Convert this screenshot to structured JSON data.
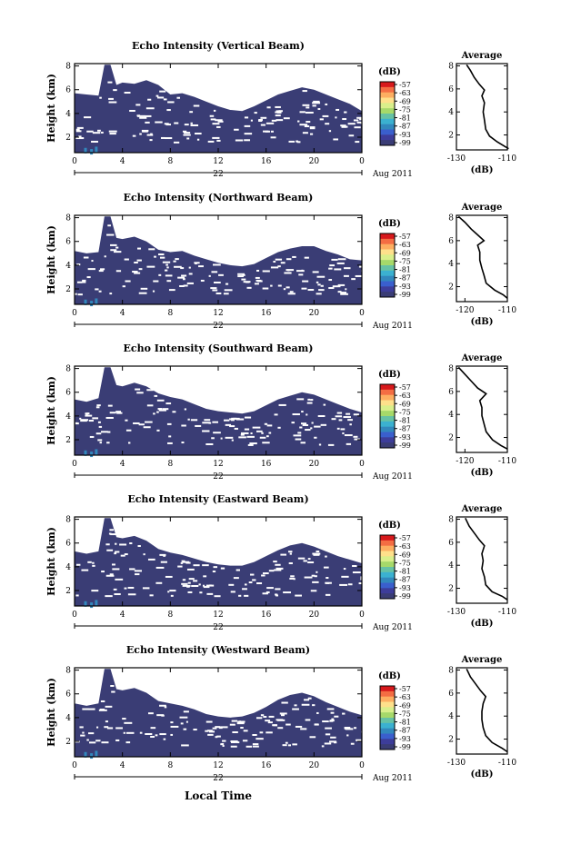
{
  "figure": {
    "bottom_xlabel": "Local Time"
  },
  "colorbar": {
    "unit": "(dB)",
    "ticks": [
      "-57",
      "-63",
      "-69",
      "-75",
      "-81",
      "-87",
      "-93",
      "-99"
    ],
    "colors": [
      "#d7191c",
      "#f46d43",
      "#fdae61",
      "#fee08b",
      "#d9ef8b",
      "#a6d96a",
      "#66c2a5",
      "#3bb1d0",
      "#3288bd",
      "#3a5fcd",
      "#3d3d9a",
      "#3a3d75"
    ]
  },
  "colors": {
    "background_echo": "#3a3d75",
    "strong_echo": "#3288bd",
    "axis": "#000000"
  },
  "chart_data": [
    {
      "type": "heatmap",
      "title": "Echo Intensity (Vertical Beam)",
      "ylabel": "Height (km)",
      "x_ticks": [
        "0",
        "4",
        "8",
        "12",
        "16",
        "20",
        "0"
      ],
      "xlim": [
        0,
        24
      ],
      "y_ticks": [
        "2",
        "4",
        "6",
        "8"
      ],
      "ylim": [
        0.7,
        8.2
      ],
      "date_day": "22",
      "date_month_year": "Aug 2011",
      "echo_top_km": [
        [
          0,
          5.7
        ],
        [
          1,
          5.6
        ],
        [
          2,
          5.5
        ],
        [
          2.5,
          8.1
        ],
        [
          3,
          8.1
        ],
        [
          3.5,
          6.4
        ],
        [
          4,
          6.6
        ],
        [
          5,
          6.5
        ],
        [
          6,
          6.8
        ],
        [
          7,
          6.4
        ],
        [
          8,
          5.6
        ],
        [
          9,
          5.7
        ],
        [
          10,
          5.4
        ],
        [
          11,
          5.0
        ],
        [
          12,
          4.6
        ],
        [
          13,
          4.3
        ],
        [
          14,
          4.2
        ],
        [
          15,
          4.6
        ],
        [
          16,
          5.1
        ],
        [
          17,
          5.6
        ],
        [
          18,
          5.9
        ],
        [
          19,
          6.2
        ],
        [
          20,
          6.0
        ],
        [
          21,
          5.6
        ],
        [
          22,
          5.2
        ],
        [
          23,
          4.8
        ],
        [
          24,
          4.2
        ]
      ],
      "profile": {
        "title": "Average",
        "xlabel": "(dB)",
        "x_ticks": [
          "-130",
          "-110"
        ],
        "xlim": [
          -130,
          -110
        ],
        "y_ticks": [
          "2",
          "4",
          "6",
          "8"
        ],
        "ylim": [
          0.7,
          8.2
        ],
        "points": [
          [
            -109.5,
            0.8
          ],
          [
            -111,
            1.0
          ],
          [
            -114,
            1.4
          ],
          [
            -117,
            1.9
          ],
          [
            -118.5,
            2.5
          ],
          [
            -119,
            3.3
          ],
          [
            -119.5,
            4.0
          ],
          [
            -119,
            4.8
          ],
          [
            -120,
            5.4
          ],
          [
            -119,
            5.9
          ],
          [
            -121,
            6.4
          ],
          [
            -123,
            7.0
          ],
          [
            -124.5,
            7.6
          ],
          [
            -126,
            8.1
          ]
        ]
      }
    },
    {
      "type": "heatmap",
      "title": "Echo Intensity (Northward Beam)",
      "ylabel": "Height (km)",
      "x_ticks": [
        "0",
        "4",
        "8",
        "12",
        "16",
        "20",
        "0"
      ],
      "xlim": [
        0,
        24
      ],
      "y_ticks": [
        "2",
        "4",
        "6",
        "8"
      ],
      "ylim": [
        0.7,
        8.2
      ],
      "date_day": "22",
      "date_month_year": "Aug 2011",
      "echo_top_km": [
        [
          0,
          5.2
        ],
        [
          1,
          5.0
        ],
        [
          2,
          5.1
        ],
        [
          2.5,
          8.1
        ],
        [
          3,
          8.1
        ],
        [
          3.5,
          6.3
        ],
        [
          4,
          6.2
        ],
        [
          5,
          6.4
        ],
        [
          6,
          6.0
        ],
        [
          7,
          5.3
        ],
        [
          8,
          5.1
        ],
        [
          9,
          5.2
        ],
        [
          10,
          4.8
        ],
        [
          11,
          4.5
        ],
        [
          12,
          4.2
        ],
        [
          13,
          4.0
        ],
        [
          14,
          3.9
        ],
        [
          15,
          4.1
        ],
        [
          16,
          4.6
        ],
        [
          17,
          5.1
        ],
        [
          18,
          5.4
        ],
        [
          19,
          5.6
        ],
        [
          20,
          5.6
        ],
        [
          21,
          5.2
        ],
        [
          22,
          4.9
        ],
        [
          23,
          4.5
        ],
        [
          24,
          4.4
        ]
      ],
      "profile": {
        "title": "Average",
        "xlabel": "(dB)",
        "x_ticks": [
          "-120",
          "-110"
        ],
        "xlim": [
          -122,
          -110
        ],
        "y_ticks": [
          "2",
          "4",
          "6",
          "8"
        ],
        "ylim": [
          0.7,
          8.2
        ],
        "points": [
          [
            -110,
            1.0
          ],
          [
            -111,
            1.3
          ],
          [
            -113,
            1.7
          ],
          [
            -115,
            2.3
          ],
          [
            -115.5,
            3.0
          ],
          [
            -116,
            3.6
          ],
          [
            -116.5,
            4.3
          ],
          [
            -116.5,
            5.0
          ],
          [
            -117,
            5.6
          ],
          [
            -115.5,
            6.0
          ],
          [
            -117,
            6.5
          ],
          [
            -118.5,
            7.0
          ],
          [
            -120,
            7.6
          ],
          [
            -121.5,
            8.1
          ]
        ]
      }
    },
    {
      "type": "heatmap",
      "title": "Echo Intensity (Southward Beam)",
      "ylabel": "Height (km)",
      "x_ticks": [
        "0",
        "4",
        "8",
        "12",
        "16",
        "20",
        "0"
      ],
      "xlim": [
        0,
        24
      ],
      "y_ticks": [
        "2",
        "4",
        "6",
        "8"
      ],
      "ylim": [
        0.7,
        8.2
      ],
      "date_day": "22",
      "date_month_year": "Aug 2011",
      "echo_top_km": [
        [
          0,
          5.4
        ],
        [
          1,
          5.2
        ],
        [
          2,
          5.5
        ],
        [
          2.5,
          8.1
        ],
        [
          3,
          8.1
        ],
        [
          3.5,
          6.6
        ],
        [
          4,
          6.5
        ],
        [
          5,
          6.8
        ],
        [
          6,
          6.5
        ],
        [
          7,
          5.9
        ],
        [
          8,
          5.6
        ],
        [
          9,
          5.4
        ],
        [
          10,
          5.0
        ],
        [
          11,
          4.6
        ],
        [
          12,
          4.4
        ],
        [
          13,
          4.3
        ],
        [
          14,
          4.2
        ],
        [
          15,
          4.4
        ],
        [
          16,
          4.9
        ],
        [
          17,
          5.4
        ],
        [
          18,
          5.7
        ],
        [
          19,
          6.0
        ],
        [
          20,
          5.8
        ],
        [
          21,
          5.4
        ],
        [
          22,
          5.0
        ],
        [
          23,
          4.6
        ],
        [
          24,
          4.3
        ]
      ],
      "profile": {
        "title": "Average",
        "xlabel": "(dB)",
        "x_ticks": [
          "-120",
          "-110"
        ],
        "xlim": [
          -122,
          -110
        ],
        "y_ticks": [
          "2",
          "4",
          "6",
          "8"
        ],
        "ylim": [
          0.7,
          8.2
        ],
        "points": [
          [
            -110,
            1.0
          ],
          [
            -111.5,
            1.3
          ],
          [
            -113.5,
            1.8
          ],
          [
            -115,
            2.5
          ],
          [
            -115.5,
            3.2
          ],
          [
            -116,
            3.9
          ],
          [
            -116,
            4.6
          ],
          [
            -116.5,
            5.2
          ],
          [
            -115,
            5.8
          ],
          [
            -117,
            6.3
          ],
          [
            -118.5,
            6.9
          ],
          [
            -120,
            7.5
          ],
          [
            -121.5,
            8.1
          ]
        ]
      }
    },
    {
      "type": "heatmap",
      "title": "Echo Intensity (Eastward Beam)",
      "ylabel": "Height (km)",
      "x_ticks": [
        "0",
        "4",
        "8",
        "12",
        "16",
        "20",
        "0"
      ],
      "xlim": [
        0,
        24
      ],
      "y_ticks": [
        "2",
        "4",
        "6",
        "8"
      ],
      "ylim": [
        0.7,
        8.2
      ],
      "date_day": "22",
      "date_month_year": "Aug 2011",
      "echo_top_km": [
        [
          0,
          5.3
        ],
        [
          1,
          5.1
        ],
        [
          2,
          5.3
        ],
        [
          2.5,
          8.1
        ],
        [
          3,
          8.1
        ],
        [
          3.5,
          6.5
        ],
        [
          4,
          6.4
        ],
        [
          5,
          6.6
        ],
        [
          6,
          6.2
        ],
        [
          7,
          5.5
        ],
        [
          8,
          5.2
        ],
        [
          9,
          5.0
        ],
        [
          10,
          4.7
        ],
        [
          11,
          4.4
        ],
        [
          12,
          4.2
        ],
        [
          13,
          4.1
        ],
        [
          14,
          4.1
        ],
        [
          15,
          4.4
        ],
        [
          16,
          4.9
        ],
        [
          17,
          5.4
        ],
        [
          18,
          5.8
        ],
        [
          19,
          6.0
        ],
        [
          20,
          5.7
        ],
        [
          21,
          5.3
        ],
        [
          22,
          4.9
        ],
        [
          23,
          4.6
        ],
        [
          24,
          4.3
        ]
      ],
      "profile": {
        "title": "Average",
        "xlabel": "(dB)",
        "x_ticks": [
          "-130",
          "-110"
        ],
        "xlim": [
          -130,
          -110
        ],
        "y_ticks": [
          "2",
          "4",
          "6",
          "8"
        ],
        "ylim": [
          0.7,
          8.2
        ],
        "points": [
          [
            -110,
            1.0
          ],
          [
            -112,
            1.3
          ],
          [
            -116,
            1.7
          ],
          [
            -118.5,
            2.3
          ],
          [
            -119,
            3.0
          ],
          [
            -120,
            3.7
          ],
          [
            -119.5,
            4.4
          ],
          [
            -120,
            5.0
          ],
          [
            -119,
            5.7
          ],
          [
            -121,
            6.2
          ],
          [
            -123,
            6.8
          ],
          [
            -125,
            7.4
          ],
          [
            -126.5,
            8.1
          ]
        ]
      }
    },
    {
      "type": "heatmap",
      "title": "Echo Intensity (Westward Beam)",
      "ylabel": "Height (km)",
      "x_ticks": [
        "0",
        "4",
        "8",
        "12",
        "16",
        "20",
        "0"
      ],
      "xlim": [
        0,
        24
      ],
      "y_ticks": [
        "2",
        "4",
        "6",
        "8"
      ],
      "ylim": [
        0.7,
        8.2
      ],
      "date_day": "22",
      "date_month_year": "Aug 2011",
      "echo_top_km": [
        [
          0,
          5.2
        ],
        [
          1,
          5.0
        ],
        [
          2,
          5.2
        ],
        [
          2.5,
          8.1
        ],
        [
          3,
          8.1
        ],
        [
          3.5,
          6.4
        ],
        [
          4,
          6.3
        ],
        [
          5,
          6.5
        ],
        [
          6,
          6.1
        ],
        [
          7,
          5.4
        ],
        [
          8,
          5.2
        ],
        [
          9,
          5.0
        ],
        [
          10,
          4.7
        ],
        [
          11,
          4.3
        ],
        [
          12,
          4.1
        ],
        [
          13,
          4.0
        ],
        [
          14,
          4.1
        ],
        [
          15,
          4.4
        ],
        [
          16,
          4.9
        ],
        [
          17,
          5.5
        ],
        [
          18,
          5.9
        ],
        [
          19,
          6.1
        ],
        [
          20,
          5.8
        ],
        [
          21,
          5.3
        ],
        [
          22,
          4.9
        ],
        [
          23,
          4.5
        ],
        [
          24,
          4.2
        ]
      ],
      "profile": {
        "title": "Average",
        "xlabel": "(dB)",
        "x_ticks": [
          "-130",
          "-110"
        ],
        "xlim": [
          -130,
          -110
        ],
        "y_ticks": [
          "2",
          "4",
          "6",
          "8"
        ],
        "ylim": [
          0.7,
          8.2
        ],
        "points": [
          [
            -110,
            0.9
          ],
          [
            -112,
            1.2
          ],
          [
            -116,
            1.7
          ],
          [
            -118.5,
            2.3
          ],
          [
            -119.5,
            3.0
          ],
          [
            -120,
            3.7
          ],
          [
            -120,
            4.4
          ],
          [
            -119.5,
            5.1
          ],
          [
            -118.5,
            5.7
          ],
          [
            -120.5,
            6.2
          ],
          [
            -122.5,
            6.8
          ],
          [
            -124.5,
            7.4
          ],
          [
            -126,
            8.1
          ]
        ]
      }
    }
  ]
}
